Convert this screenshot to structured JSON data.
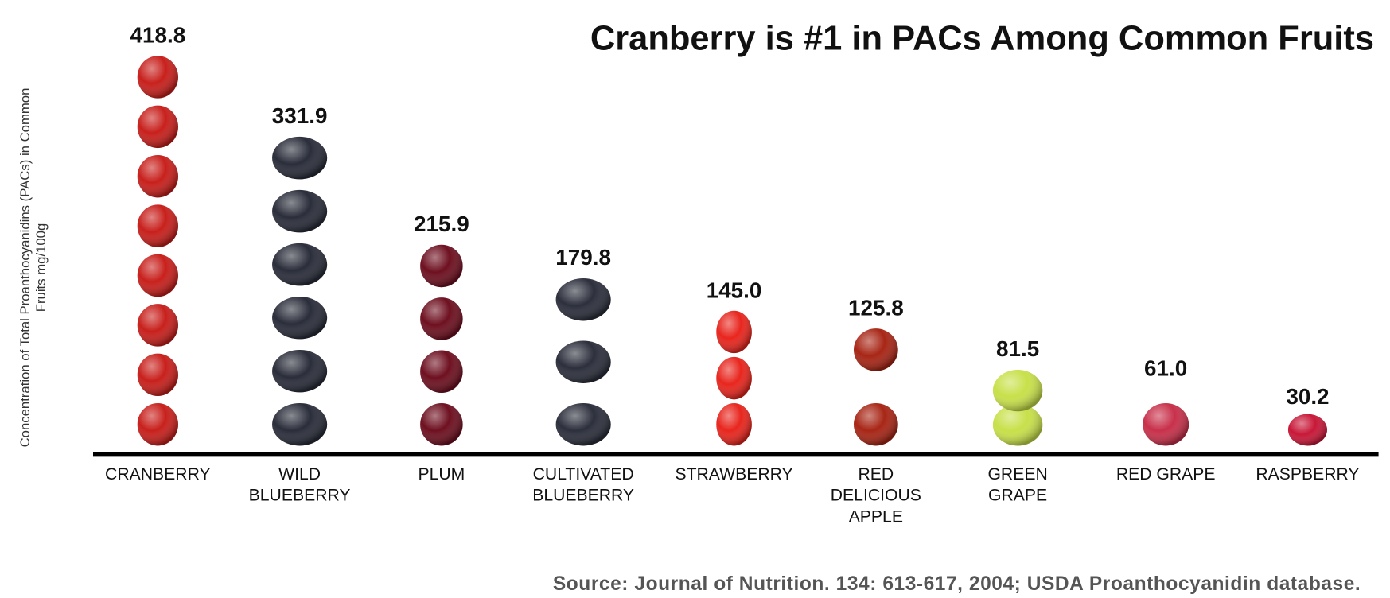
{
  "chart_data": {
    "type": "pictograph",
    "title": "Cranberry is #1 in PACs Among Common Fruits",
    "y_label": "Concentration of Total Proanthocyanidins (PACs) in Common Fruits mg/100g",
    "source": "Source: Journal of Nutrition. 134: 613-617, 2004; USDA Proanthocyanidin database.",
    "categories": [
      "CRANBERRY",
      "WILD BLUEBERRY",
      "PLUM",
      "CULTIVATED BLUEBERRY",
      "STRAWBERRY",
      "RED DELICIOUS APPLE",
      "GREEN GRAPE",
      "RED GRAPE",
      "RASPBERRY"
    ],
    "values": [
      418.8,
      331.9,
      215.9,
      179.8,
      145.0,
      125.8,
      81.5,
      61.0,
      30.2
    ],
    "value_labels": [
      "418.8",
      "331.9",
      "215.9",
      "179.8",
      "145.0",
      "125.8",
      "81.5",
      "61.0",
      "30.2"
    ],
    "colors": [
      "#c8201c",
      "#2a2d3a",
      "#6e1020",
      "#2c2f3c",
      "#e8261e",
      "#a82616",
      "#c8e04a",
      "#c8304a",
      "#c81838"
    ]
  }
}
